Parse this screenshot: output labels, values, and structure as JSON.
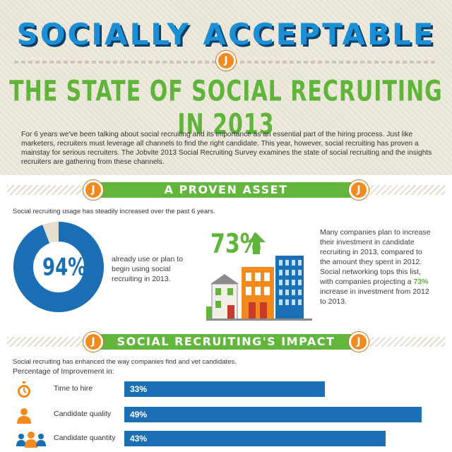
{
  "header": {
    "title": "SOCIALLY ACCEPTABLE",
    "logo_letter": "J",
    "subtitle": "THE STATE OF SOCIAL RECRUITING IN 2013",
    "intro": "For 6 years we've been talking about social recruiting and its importance as an essential part of the hiring process. Just like marketers, recruiters must leverage all channels to find the right candidate. This year, however, social recruiting has proven a mainstay for serious recruiters. The Jobvite 2013 Social Recruiting Survey examines the state of social recruiting and the insights recruiters are gathering from these channels."
  },
  "proven_asset": {
    "heading": "A PROVEN ASSET",
    "usage_text": "Social recruiting usage has steadily increased over the past 6 years.",
    "donut_value": 94,
    "donut_label": "94%",
    "donut_desc": "already use or plan to begin using social recruiting in 2013.",
    "increase_label": "73%",
    "increase_desc_before": "Many companies plan to increase their investment in candidate recruiting in 2013, compared to the amount they spent in 2012. Social networking tops this list, with companies projecting a ",
    "increase_desc_highlight": "73%",
    "increase_desc_after": " increase in investment from 2012 to 2013."
  },
  "impact": {
    "heading": "SOCIAL RECRUITING'S IMPACT",
    "subtitle": "Social recruiting has enhanced the way companies find and vet candidates.",
    "metric_label": "Percentage of Improvement in:",
    "rows": [
      {
        "icon": "stopwatch-icon",
        "label": "Time to hire",
        "value": 33,
        "value_label": "33%"
      },
      {
        "icon": "person-icon",
        "label": "Candidate quality",
        "value": 49,
        "value_label": "49%"
      },
      {
        "icon": "people-group-icon",
        "label": "Candidate quantity",
        "value": 43,
        "value_label": "43%"
      }
    ]
  },
  "colors": {
    "title_blue": "#1a8fd6",
    "subtitle_green": "#5fb53a",
    "bar_blue": "#1a6fb5",
    "badge_orange": "#f28a1e",
    "hero_bg": "#e9e4d6"
  }
}
